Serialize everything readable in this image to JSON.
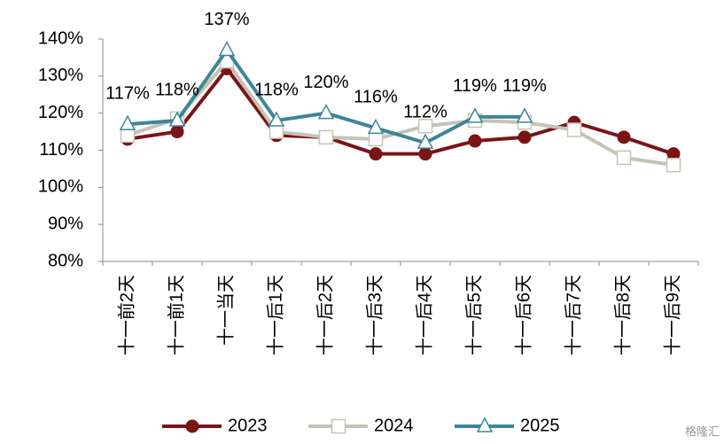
{
  "chart_data": {
    "type": "line",
    "categories": [
      "十一前2天",
      "十一前1天",
      "十一当天",
      "十一后1天",
      "十一后2天",
      "十一后3天",
      "十一后4天",
      "十一后5天",
      "十一后6天",
      "十一后7天",
      "十一后8天",
      "十一后9天"
    ],
    "series": [
      {
        "name": "2023",
        "color": "#7a1417",
        "marker": "circle",
        "values": [
          113,
          115,
          132,
          114,
          113.5,
          109,
          109,
          112.5,
          113.5,
          117.5,
          113.5,
          109
        ]
      },
      {
        "name": "2024",
        "color": "#c6c3b4",
        "marker": "square",
        "values": [
          114,
          118.5,
          134,
          115,
          113.5,
          113,
          116.5,
          118,
          117.5,
          115.5,
          108,
          106
        ]
      },
      {
        "name": "2025",
        "color": "#3e8598",
        "marker": "triangle",
        "values": [
          117,
          118,
          137,
          118,
          120,
          116,
          112,
          119,
          119,
          null,
          null,
          null
        ],
        "value_labels": [
          "117%",
          "118%",
          "137%",
          "118%",
          "120%",
          "116%",
          "112%",
          "119%",
          "119%",
          null,
          null,
          null
        ]
      }
    ],
    "ylim": [
      80,
      140
    ],
    "yticks": [
      {
        "value": 80,
        "label": "80%"
      },
      {
        "value": 90,
        "label": "90%"
      },
      {
        "value": 100,
        "label": "100%"
      },
      {
        "value": 110,
        "label": "110%"
      },
      {
        "value": 120,
        "label": "120%"
      },
      {
        "value": 130,
        "label": "130%"
      },
      {
        "value": 140,
        "label": "140%"
      }
    ],
    "legend": "bottom",
    "grid": false,
    "watermark": "格隆汇"
  }
}
